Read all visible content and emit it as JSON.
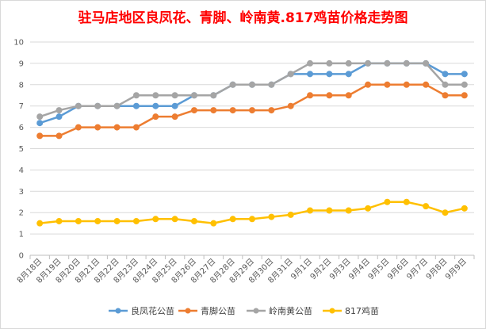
{
  "chart_data": {
    "type": "line",
    "title": "驻马店地区良凤花、青脚、岭南黄.817鸡苗价格走势图",
    "xlabel": "",
    "ylabel": "",
    "ylim": [
      0,
      10
    ],
    "yticks": [
      0,
      1,
      2,
      3,
      4,
      5,
      6,
      7,
      8,
      9,
      10
    ],
    "grid": true,
    "legend_position": "bottom",
    "categories": [
      "8月18日",
      "8月19日",
      "8月20日",
      "8月21日",
      "8月22日",
      "8月23日",
      "8月24日",
      "8月25日",
      "8月26日",
      "8月27日",
      "8月28日",
      "8月29日",
      "8月30日",
      "8月31日",
      "9月1日",
      "9月2日",
      "9月3日",
      "9月4日",
      "9月5日",
      "9月6日",
      "9月7日",
      "9月8日",
      "9月9日"
    ],
    "series": [
      {
        "name": "良凤花公苗",
        "color": "#5b9bd5",
        "values": [
          6.2,
          6.5,
          7,
          7,
          7,
          7,
          7,
          7,
          7.5,
          7.5,
          8,
          8,
          8,
          8.5,
          8.5,
          8.5,
          8.5,
          9,
          9,
          9,
          9,
          8.5,
          8.5
        ]
      },
      {
        "name": "青脚公苗",
        "color": "#ed7d31",
        "values": [
          5.6,
          5.6,
          6,
          6,
          6,
          6,
          6.5,
          6.5,
          6.8,
          6.8,
          6.8,
          6.8,
          6.8,
          7,
          7.5,
          7.5,
          7.5,
          8,
          8,
          8,
          8,
          7.5,
          7.5
        ]
      },
      {
        "name": "岭南黄公苗",
        "color": "#a5a5a5",
        "values": [
          6.5,
          6.8,
          7,
          7,
          7,
          7.5,
          7.5,
          7.5,
          7.5,
          7.5,
          8,
          8,
          8,
          8.5,
          9,
          9,
          9,
          9,
          9,
          9,
          9,
          8,
          8
        ]
      },
      {
        "name": "817鸡苗",
        "color": "#ffc000",
        "values": [
          1.5,
          1.6,
          1.6,
          1.6,
          1.6,
          1.6,
          1.7,
          1.7,
          1.6,
          1.5,
          1.7,
          1.7,
          1.8,
          1.9,
          2.1,
          2.1,
          2.1,
          2.2,
          2.5,
          2.5,
          2.3,
          2,
          2.2
        ]
      }
    ],
    "colors": {
      "title": "#ff0000",
      "grid": "#d9d9d9",
      "axis": "#bfbfbf"
    }
  }
}
